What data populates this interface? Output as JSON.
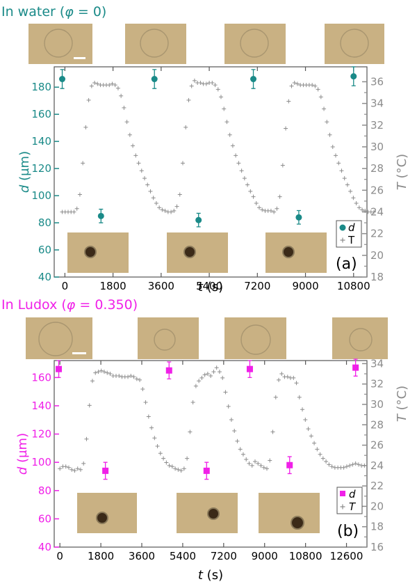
{
  "colors": {
    "panel_a_accent": "#1a8a88",
    "panel_b_accent": "#f020e8",
    "temperature": "#8c8c8c",
    "photo_background": "#c9b183",
    "photo_ring": "#a99670",
    "particle": "#3b2a18"
  },
  "chart_data": [
    {
      "type": "scatter",
      "panel_label": "(a)",
      "title": "In water (φ = 0)",
      "title_parts": {
        "prefix": "In water (",
        "symbol": "φ",
        "suffix": " = 0)"
      },
      "xlabel": "t (s)",
      "xlabel_parts": {
        "symbol": "t",
        "unit": " (s)"
      },
      "ylabel": "d (µm)",
      "ylabel_parts": {
        "symbol": "d",
        "unit": " (µm)"
      },
      "y2label": "T (°C)",
      "y2label_parts": {
        "symbol": "T",
        "unit": " (°C)"
      },
      "xlim": [
        -400,
        11300
      ],
      "ylim": [
        40,
        195
      ],
      "y2lim": [
        18,
        37.375
      ],
      "xticks": [
        "0",
        "1800",
        "3600",
        "5400",
        "7200",
        "9000",
        "10800"
      ],
      "xtick_values": [
        0,
        1800,
        3600,
        5400,
        7200,
        9000,
        10800
      ],
      "yticks": [
        "40",
        "60",
        "80",
        "100",
        "120",
        "140",
        "160",
        "180"
      ],
      "ytick_values": [
        40,
        60,
        80,
        100,
        120,
        140,
        160,
        180
      ],
      "y2ticks": [
        "18",
        "20",
        "22",
        "24",
        "26",
        "28",
        "30",
        "32",
        "34",
        "36"
      ],
      "y2tick_values": [
        18,
        20,
        22,
        24,
        26,
        28,
        30,
        32,
        34,
        36
      ],
      "legend": {
        "position": "bottom-right",
        "entries": [
          "d",
          "T"
        ]
      },
      "series": [
        {
          "name": "d",
          "axis": "left",
          "marker": "circle",
          "x": [
            -100,
            1350,
            3350,
            5000,
            7050,
            8750,
            10800
          ],
          "y": [
            186,
            85,
            186,
            82,
            186,
            84,
            188
          ],
          "yerr": [
            7,
            5,
            7,
            5,
            7,
            5,
            7
          ]
        },
        {
          "name": "T",
          "axis": "right",
          "marker": "plus",
          "x_start": -100,
          "x_step": 110,
          "y": [
            24.0,
            24.0,
            24.0,
            24.0,
            24.0,
            24.3,
            25.6,
            28.5,
            31.8,
            34.3,
            35.6,
            35.9,
            35.8,
            35.7,
            35.7,
            35.7,
            35.7,
            35.8,
            35.7,
            35.4,
            34.7,
            33.6,
            32.3,
            31.1,
            30.1,
            29.2,
            28.5,
            27.8,
            27.1,
            26.5,
            25.9,
            25.3,
            24.8,
            24.4,
            24.2,
            24.1,
            24.0,
            24.0,
            24.1,
            24.5,
            25.6,
            28.5,
            31.8,
            34.3,
            35.6,
            36.1,
            35.9,
            35.9,
            35.8,
            35.8,
            35.9,
            35.9,
            35.7,
            35.3,
            34.6,
            33.5,
            32.3,
            31.1,
            30.1,
            29.2,
            28.5,
            27.8,
            27.1,
            26.5,
            25.9,
            25.4,
            24.8,
            24.4,
            24.2,
            24.1,
            24.1,
            24.1,
            24.0,
            24.3,
            25.4,
            28.3,
            31.7,
            34.2,
            35.6,
            35.9,
            35.8,
            35.7,
            35.7,
            35.7,
            35.7,
            35.7,
            35.6,
            35.3,
            34.6,
            33.5,
            32.3,
            31.1,
            30.0,
            29.2,
            28.5,
            27.8,
            27.1,
            26.5,
            25.9,
            25.3,
            24.8,
            24.4,
            24.2,
            24.1,
            24.0,
            24.0,
            24.0
          ]
        }
      ]
    },
    {
      "type": "scatter",
      "panel_label": "(b)",
      "title": "In Ludox (φ = 0.350)",
      "title_parts": {
        "prefix": "In Ludox (",
        "symbol": "φ",
        "suffix": " = 0.350)"
      },
      "xlabel": "t (s)",
      "xlabel_parts": {
        "symbol": "t",
        "unit": " (s)"
      },
      "ylabel": "d (µm)",
      "ylabel_parts": {
        "symbol": "d",
        "unit": " (µm)"
      },
      "y2label": "T (°C)",
      "y2label_parts": {
        "symbol": "T",
        "unit": " (°C)"
      },
      "xlim": [
        -250,
        13500
      ],
      "ylim": [
        40,
        172
      ],
      "y2lim": [
        16,
        34.3
      ],
      "xticks": [
        "0",
        "1800",
        "3600",
        "5400",
        "7200",
        "9000",
        "10800",
        "12600"
      ],
      "xtick_values": [
        0,
        1800,
        3600,
        5400,
        7200,
        9000,
        10800,
        12600
      ],
      "yticks": [
        "40",
        "60",
        "80",
        "100",
        "120",
        "140",
        "160"
      ],
      "ytick_values": [
        40,
        60,
        80,
        100,
        120,
        140,
        160
      ],
      "y2ticks": [
        "16",
        "18",
        "20",
        "22",
        "24",
        "26",
        "28",
        "30",
        "32",
        "34"
      ],
      "y2tick_values": [
        16,
        18,
        20,
        22,
        24,
        26,
        28,
        30,
        32,
        34
      ],
      "legend": {
        "position": "bottom-right",
        "entries": [
          "d",
          "T"
        ]
      },
      "series": [
        {
          "name": "d",
          "axis": "left",
          "marker": "square",
          "x": [
            -50,
            2000,
            4800,
            6450,
            8350,
            10100,
            13000
          ],
          "y": [
            166,
            94,
            165,
            94,
            166,
            98,
            167
          ],
          "yerr": [
            6,
            6,
            6,
            6,
            6,
            6,
            6
          ]
        },
        {
          "name": "T",
          "axis": "right",
          "marker": "plus",
          "x_start": 0,
          "x_step": 130,
          "y": [
            23.7,
            23.9,
            23.9,
            23.8,
            23.6,
            23.5,
            23.7,
            23.6,
            24.2,
            26.6,
            29.9,
            32.3,
            33.1,
            33.2,
            33.3,
            33.2,
            33.1,
            33.0,
            32.8,
            32.8,
            32.8,
            32.7,
            32.7,
            32.7,
            32.8,
            32.7,
            32.5,
            32.4,
            31.5,
            30.2,
            28.8,
            27.7,
            26.7,
            25.9,
            25.2,
            24.7,
            24.3,
            24.0,
            23.9,
            23.7,
            23.6,
            23.5,
            23.7,
            24.7,
            27.3,
            30.2,
            31.8,
            32.3,
            32.6,
            32.9,
            33.0,
            32.8,
            33.2,
            33.6,
            33.2,
            32.6,
            31.2,
            29.8,
            28.5,
            27.4,
            26.4,
            25.6,
            25.1,
            24.6,
            24.2,
            24.0,
            24.4,
            24.2,
            24.0,
            23.8,
            23.7,
            24.5,
            27.3,
            30.7,
            32.4,
            33.0,
            32.7,
            32.7,
            32.6,
            32.6,
            32.1,
            30.7,
            29.5,
            28.5,
            27.6,
            26.9,
            26.2,
            25.6,
            25.1,
            24.7,
            24.4,
            24.1,
            23.9,
            23.8,
            23.8,
            23.8,
            23.8,
            23.9,
            24.0,
            24.1,
            24.2,
            24.1,
            24.0,
            24.0
          ]
        }
      ]
    }
  ]
}
